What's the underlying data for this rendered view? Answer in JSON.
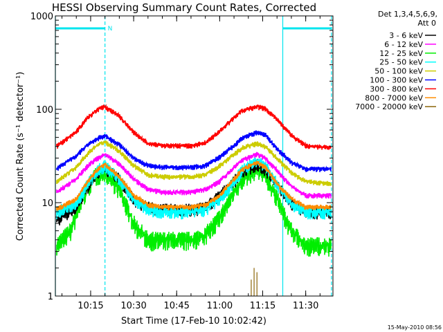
{
  "chart_data": {
    "type": "line",
    "title": "HESSI Observing Summary Count Rates, Corrected",
    "xlabel": "Start Time (17-Feb-10 10:02:42)",
    "ylabel": "Corrected Count Rate (s⁻¹ detector⁻¹)",
    "x_start": "10:02:42",
    "x_range": [
      "10:02:42",
      "11:39:30"
    ],
    "y_scale": "log",
    "ylim": [
      1,
      1000
    ],
    "x_ticks": [
      "10:15",
      "10:30",
      "10:45",
      "11:00",
      "11:15",
      "11:30"
    ],
    "y_ticks": [
      "1",
      "10",
      "100",
      "1000"
    ],
    "grid": false,
    "legend_position": "outside-right",
    "legend_header": [
      "Det 1,3,4,5,6,9,",
      "Att 0"
    ],
    "footer_text": "15-May-2010 08:56",
    "night_marker": "N",
    "night_bar_color": "#00e5ee",
    "night_intervals": [
      {
        "start": "10:02:42",
        "end": "10:20:00"
      },
      {
        "start": "11:22:00",
        "end": "11:39:00"
      }
    ],
    "series": [
      {
        "name": "3 - 6 keV",
        "color": "#000000",
        "x": [
          "10:03",
          "10:10",
          "10:14",
          "10:18",
          "10:20",
          "10:25",
          "10:30",
          "10:35",
          "10:40",
          "10:50",
          "10:55",
          "11:00",
          "11:05",
          "11:08",
          "11:13",
          "11:16",
          "11:20",
          "11:25",
          "11:30",
          "11:39"
        ],
        "values": [
          6.5,
          9,
          15,
          22,
          24,
          18,
          11,
          9,
          8.5,
          8.5,
          9,
          12,
          17,
          22,
          26,
          23,
          16,
          10,
          8,
          8
        ]
      },
      {
        "name": "6 - 12 keV",
        "color": "#ff00ff",
        "x": [
          "10:03",
          "10:10",
          "10:14",
          "10:18",
          "10:20",
          "10:25",
          "10:30",
          "10:35",
          "10:40",
          "10:50",
          "10:55",
          "11:00",
          "11:05",
          "11:08",
          "11:13",
          "11:16",
          "11:20",
          "11:25",
          "11:30",
          "11:39"
        ],
        "values": [
          13,
          18,
          25,
          31,
          33,
          26,
          18,
          14,
          13,
          13,
          14,
          17,
          24,
          29,
          33,
          30,
          22,
          15,
          12,
          12
        ]
      },
      {
        "name": "12 - 25 keV",
        "color": "#00ee00",
        "x": [
          "10:03",
          "10:08",
          "10:12",
          "10:16",
          "10:20",
          "10:25",
          "10:30",
          "10:35",
          "10:40",
          "10:50",
          "10:55",
          "11:00",
          "11:05",
          "11:08",
          "11:13",
          "11:16",
          "11:20",
          "11:25",
          "11:30",
          "11:39"
        ],
        "values": [
          3.5,
          5,
          11,
          19,
          22,
          14,
          6,
          4,
          4,
          4,
          4.5,
          7,
          13,
          18,
          24,
          20,
          11,
          5,
          3.5,
          3.5
        ]
      },
      {
        "name": "25 - 50 keV",
        "color": "#00ffff",
        "x": [
          "10:03",
          "10:10",
          "10:14",
          "10:18",
          "10:20",
          "10:25",
          "10:30",
          "10:35",
          "10:40",
          "10:50",
          "10:55",
          "11:00",
          "11:05",
          "11:08",
          "11:13",
          "11:16",
          "11:20",
          "11:25",
          "11:30",
          "11:39"
        ],
        "values": [
          8,
          10,
          16,
          23,
          25,
          18,
          11,
          8.5,
          8,
          8,
          8.5,
          11,
          17,
          23,
          28,
          25,
          16,
          10,
          8,
          8
        ]
      },
      {
        "name": "50 - 100 keV",
        "color": "#cccc00",
        "x": [
          "10:03",
          "10:10",
          "10:14",
          "10:18",
          "10:20",
          "10:25",
          "10:30",
          "10:35",
          "10:40",
          "10:50",
          "10:55",
          "11:00",
          "11:05",
          "11:08",
          "11:13",
          "11:16",
          "11:20",
          "11:25",
          "11:30",
          "11:39"
        ],
        "values": [
          17,
          24,
          34,
          43,
          45,
          36,
          25,
          20,
          19,
          19,
          20,
          25,
          33,
          39,
          43,
          40,
          30,
          21,
          17,
          16
        ]
      },
      {
        "name": "100 - 300 keV",
        "color": "#0000ff",
        "x": [
          "10:03",
          "10:10",
          "10:14",
          "10:18",
          "10:20",
          "10:25",
          "10:30",
          "10:35",
          "10:40",
          "10:50",
          "10:55",
          "11:00",
          "11:05",
          "11:08",
          "11:13",
          "11:16",
          "11:20",
          "11:25",
          "11:30",
          "11:39"
        ],
        "values": [
          23,
          32,
          42,
          50,
          52,
          42,
          30,
          25,
          24,
          24,
          25,
          31,
          41,
          50,
          57,
          53,
          38,
          27,
          23,
          23
        ]
      },
      {
        "name": "300 - 800 keV",
        "color": "#ff0000",
        "x": [
          "10:03",
          "10:10",
          "10:14",
          "10:18",
          "10:20",
          "10:25",
          "10:30",
          "10:35",
          "10:40",
          "10:50",
          "10:55",
          "11:00",
          "11:05",
          "11:08",
          "11:13",
          "11:16",
          "11:20",
          "11:25",
          "11:30",
          "11:39"
        ],
        "values": [
          40,
          58,
          82,
          103,
          107,
          85,
          57,
          43,
          41,
          41,
          44,
          58,
          82,
          98,
          107,
          102,
          78,
          53,
          41,
          39
        ]
      },
      {
        "name": "800 - 7000 keV",
        "color": "#ff8c00",
        "x": [
          "10:03",
          "10:10",
          "10:14",
          "10:18",
          "10:20",
          "10:25",
          "10:30",
          "10:35",
          "10:40",
          "10:50",
          "10:55",
          "11:00",
          "11:05",
          "11:08",
          "11:13",
          "11:16",
          "11:20",
          "11:25",
          "11:30",
          "11:39"
        ],
        "values": [
          8.5,
          11,
          17,
          24,
          26,
          19,
          12,
          9.5,
          9,
          9,
          9.5,
          12,
          18,
          23,
          27,
          24,
          16,
          11,
          9,
          9
        ]
      },
      {
        "name": "7000 - 20000 keV",
        "color": "#8b6508",
        "x": [
          "11:11",
          "11:12",
          "11:13"
        ],
        "values": [
          1.5,
          2,
          1.8
        ]
      }
    ]
  }
}
